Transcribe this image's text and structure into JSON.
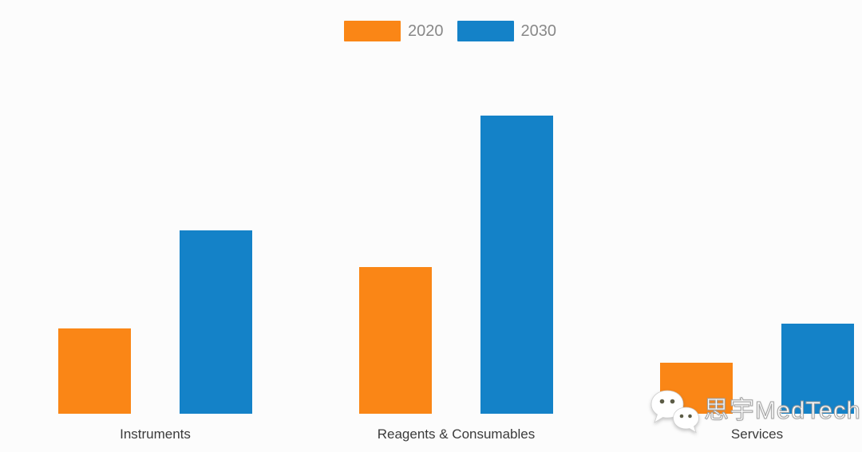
{
  "colors": {
    "background": "#fcfcfc",
    "series_2020": "#FA8616",
    "series_2030": "#1482C8",
    "category_label": "#3b3b3b",
    "legend_label": "#888888",
    "watermark_fill": "#ffffff",
    "watermark_outline": "#a0a0a0"
  },
  "chart_data": {
    "type": "bar",
    "title": "",
    "xlabel": "",
    "ylabel": "",
    "categories": [
      "Instruments",
      "Reagents & Consumables",
      "Services"
    ],
    "series": [
      {
        "name": "2020",
        "color": "#FA8616",
        "values": [
          28.6,
          49.2,
          17.1
        ]
      },
      {
        "name": "2030",
        "color": "#1482C8",
        "values": [
          61.5,
          100,
          30.2
        ]
      }
    ],
    "units": "relative units - value axis not drawn; values normalized so the tallest bar (Reagents & Consumables 2030) = 100",
    "ylim": [
      0,
      100
    ],
    "grid": false,
    "axes_visible": false,
    "legend_position": "top-center"
  },
  "watermark": {
    "icon": "wechat-logo",
    "text": "思宇MedTech"
  }
}
